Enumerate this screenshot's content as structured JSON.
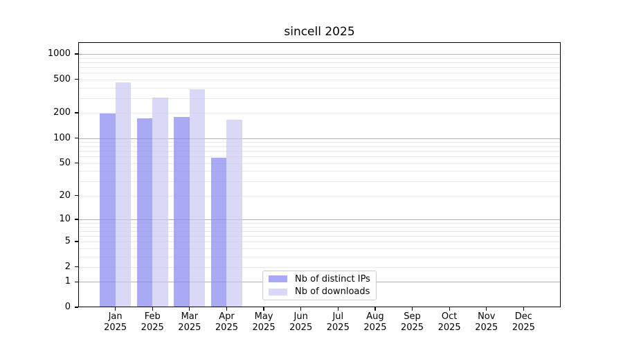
{
  "page": {
    "background": "#ffffff"
  },
  "chart_data": {
    "type": "bar",
    "title": "sincell 2025",
    "categories": [
      "Jan 2025",
      "Feb 2025",
      "Mar 2025",
      "Apr 2025",
      "May 2025",
      "Jun 2025",
      "Jul 2025",
      "Aug 2025",
      "Sep 2025",
      "Oct 2025",
      "Nov 2025",
      "Dec 2025"
    ],
    "series": [
      {
        "name": "Nb of distinct IPs",
        "color": "#a9a9f6",
        "fill": "rgba(136,136,240,0.72)",
        "values": [
          195,
          172,
          178,
          58,
          null,
          null,
          null,
          null,
          null,
          null,
          null,
          null
        ]
      },
      {
        "name": "Nb of downloads",
        "color": "#d9d9f7",
        "fill": "rgba(200,200,244,0.69)",
        "values": [
          458,
          302,
          381,
          165,
          null,
          null,
          null,
          null,
          null,
          null,
          null,
          null
        ]
      }
    ],
    "yscale": "log1p",
    "yticks": [
      0,
      1,
      2,
      5,
      10,
      20,
      50,
      100,
      200,
      500,
      1000
    ],
    "ylim": [
      0,
      1380
    ],
    "xlabel": "",
    "ylabel": "",
    "grid": true,
    "grid_major": [
      1,
      10,
      100,
      1000
    ],
    "grid_major_color": "#b0b0b0",
    "grid_minor_color": "#e9e9e9",
    "axis_color": "#000000",
    "legend_position": "lower-center"
  }
}
